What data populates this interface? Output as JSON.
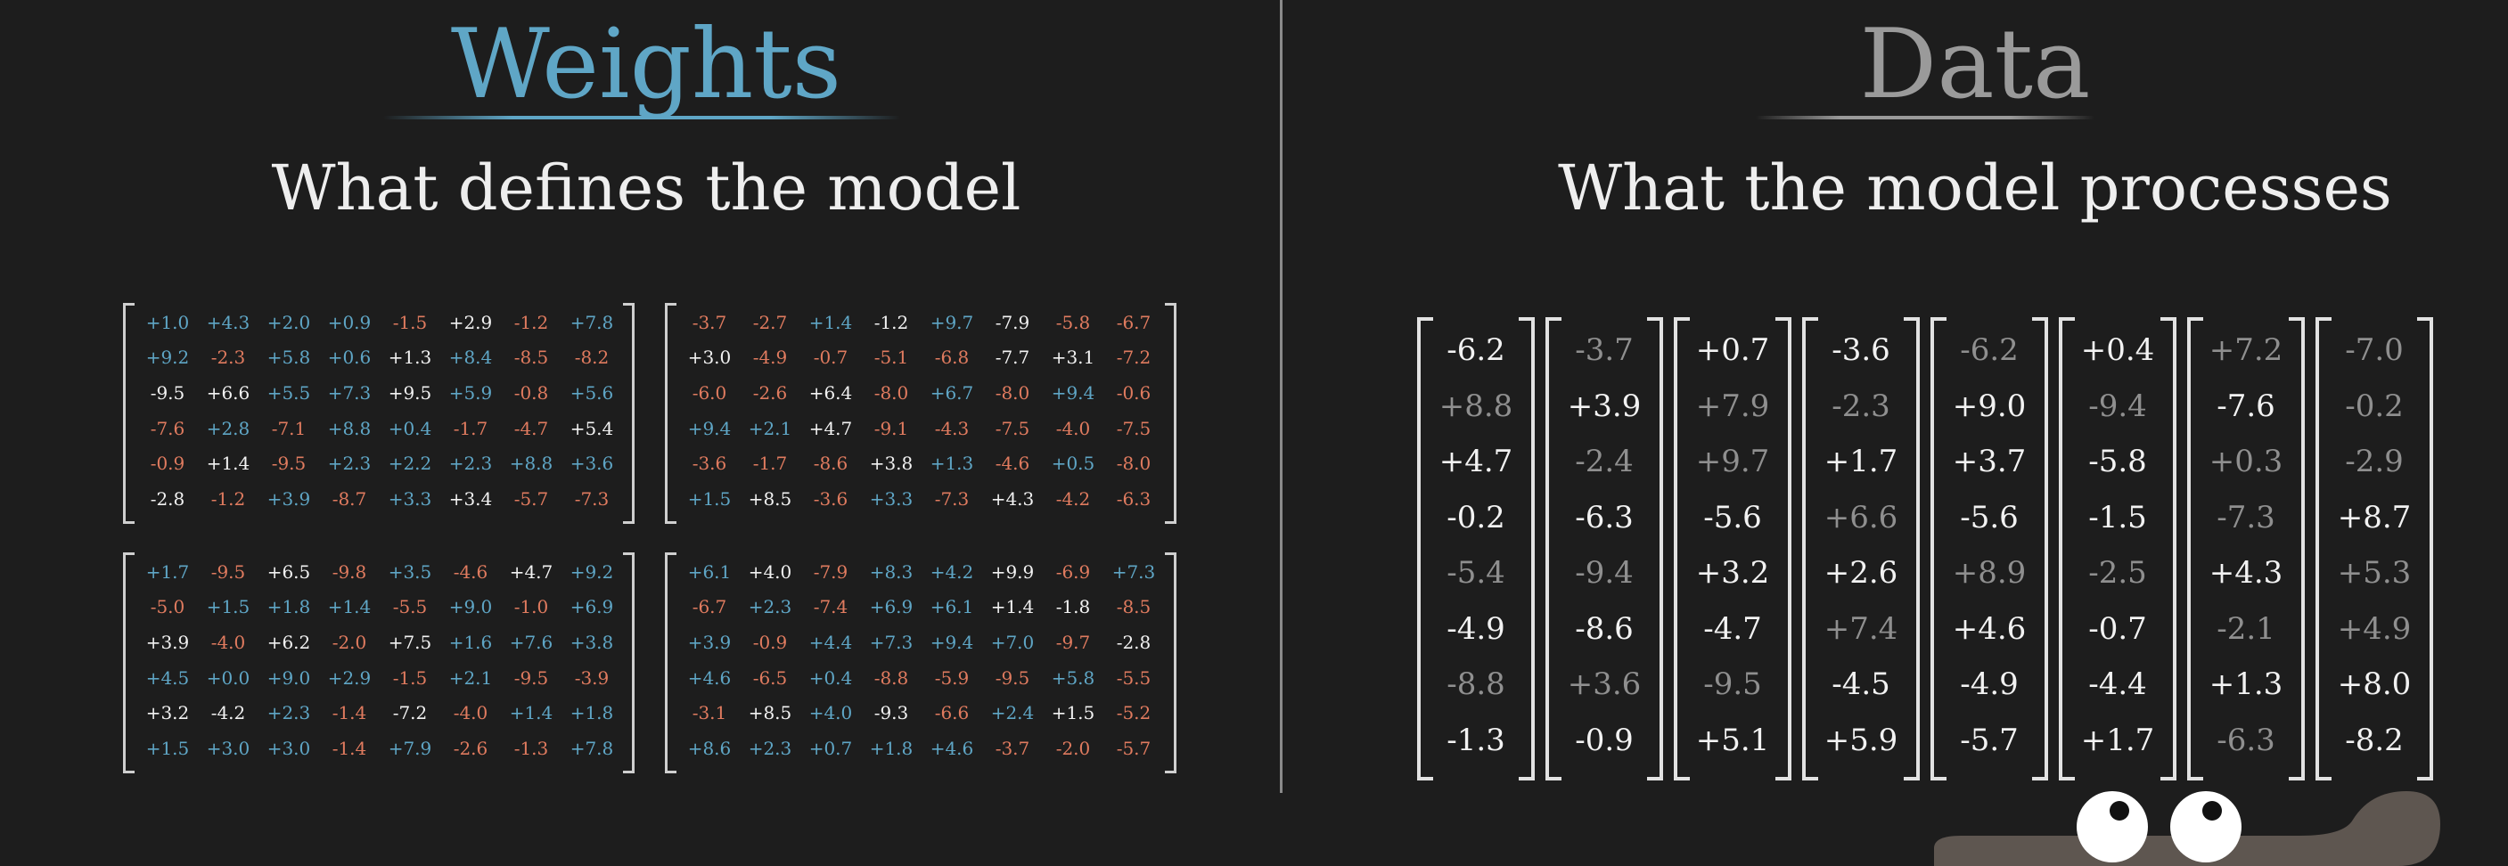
{
  "weights": {
    "title": "Weights",
    "subtitle": "What defines the model"
  },
  "data": {
    "title": "Data",
    "subtitle": "What the model processes"
  },
  "colors": {
    "positive": "#5fa6c6",
    "negative": "#e07b5f",
    "bright": "#f2f2f2",
    "gray": "#8f8f8f",
    "weights_title": "#5fa6c6",
    "data_title": "#9a9a9a",
    "creature": "#5e5650"
  },
  "weight_matrices": [
    {
      "rows": [
        [
          "+1.0",
          "+4.3",
          "+2.0",
          "+0.9",
          "-1.5",
          "+2.9",
          "-1.2",
          "+7.8"
        ],
        [
          "+9.2",
          "-2.3",
          "+5.8",
          "+0.6",
          "+1.3",
          "+8.4",
          "-8.5",
          "-8.2"
        ],
        [
          "-9.5",
          "+6.6",
          "+5.5",
          "+7.3",
          "+9.5",
          "+5.9",
          "-0.8",
          "+5.6"
        ],
        [
          "-7.6",
          "+2.8",
          "-7.1",
          "+8.8",
          "+0.4",
          "-1.7",
          "-4.7",
          "+5.4"
        ],
        [
          "-0.9",
          "+1.4",
          "-9.5",
          "+2.3",
          "+2.2",
          "+2.3",
          "+8.8",
          "+3.6"
        ],
        [
          "-2.8",
          "-1.2",
          "+3.9",
          "-8.7",
          "+3.3",
          "+3.4",
          "-5.7",
          "-7.3"
        ]
      ]
    },
    {
      "rows": [
        [
          "-3.7",
          "-2.7",
          "+1.4",
          "-1.2",
          "+9.7",
          "-7.9",
          "-5.8",
          "-6.7"
        ],
        [
          "+3.0",
          "-4.9",
          "-0.7",
          "-5.1",
          "-6.8",
          "-7.7",
          "+3.1",
          "-7.2"
        ],
        [
          "-6.0",
          "-2.6",
          "+6.4",
          "-8.0",
          "+6.7",
          "-8.0",
          "+9.4",
          "-0.6"
        ],
        [
          "+9.4",
          "+2.1",
          "+4.7",
          "-9.1",
          "-4.3",
          "-7.5",
          "-4.0",
          "-7.5"
        ],
        [
          "-3.6",
          "-1.7",
          "-8.6",
          "+3.8",
          "+1.3",
          "-4.6",
          "+0.5",
          "-8.0"
        ],
        [
          "+1.5",
          "+8.5",
          "-3.6",
          "+3.3",
          "-7.3",
          "+4.3",
          "-4.2",
          "-6.3"
        ]
      ]
    },
    {
      "rows": [
        [
          "+1.7",
          "-9.5",
          "+6.5",
          "-9.8",
          "+3.5",
          "-4.6",
          "+4.7",
          "+9.2"
        ],
        [
          "-5.0",
          "+1.5",
          "+1.8",
          "+1.4",
          "-5.5",
          "+9.0",
          "-1.0",
          "+6.9"
        ],
        [
          "+3.9",
          "-4.0",
          "+6.2",
          "-2.0",
          "+7.5",
          "+1.6",
          "+7.6",
          "+3.8"
        ],
        [
          "+4.5",
          "+0.0",
          "+9.0",
          "+2.9",
          "-1.5",
          "+2.1",
          "-9.5",
          "-3.9"
        ],
        [
          "+3.2",
          "-4.2",
          "+2.3",
          "-1.4",
          "-7.2",
          "-4.0",
          "+1.4",
          "+1.8"
        ],
        [
          "+1.5",
          "+3.0",
          "+3.0",
          "-1.4",
          "+7.9",
          "-2.6",
          "-1.3",
          "+7.8"
        ]
      ]
    },
    {
      "rows": [
        [
          "+6.1",
          "+4.0",
          "-7.9",
          "+8.3",
          "+4.2",
          "+9.9",
          "-6.9",
          "+7.3"
        ],
        [
          "-6.7",
          "+2.3",
          "-7.4",
          "+6.9",
          "+6.1",
          "+1.4",
          "-1.8",
          "-8.5"
        ],
        [
          "+3.9",
          "-0.9",
          "+4.4",
          "+7.3",
          "+9.4",
          "+7.0",
          "-9.7",
          "-2.8"
        ],
        [
          "+4.6",
          "-6.5",
          "+0.4",
          "-8.8",
          "-5.9",
          "-9.5",
          "+5.8",
          "-5.5"
        ],
        [
          "-3.1",
          "+8.5",
          "+4.0",
          "-9.3",
          "-6.6",
          "+2.4",
          "+1.5",
          "-5.2"
        ],
        [
          "+8.6",
          "+2.3",
          "+0.7",
          "+1.8",
          "+4.6",
          "-3.7",
          "-2.0",
          "-5.7"
        ]
      ]
    }
  ],
  "data_vectors": [
    [
      "-6.2",
      "+8.8",
      "+4.7",
      "-0.2",
      "-5.4",
      "-4.9",
      "-8.8",
      "-1.3"
    ],
    [
      "-3.7",
      "+3.9",
      "-2.4",
      "-6.3",
      "-9.4",
      "-8.6",
      "+3.6",
      "-0.9"
    ],
    [
      "+0.7",
      "+7.9",
      "+9.7",
      "-5.6",
      "+3.2",
      "-4.7",
      "-9.5",
      "+5.1"
    ],
    [
      "-3.6",
      "-2.3",
      "+1.7",
      "+6.6",
      "+2.6",
      "+7.4",
      "-4.5",
      "+5.9"
    ],
    [
      "-6.2",
      "+9.0",
      "+3.7",
      "-5.6",
      "+8.9",
      "+4.6",
      "-4.9",
      "-5.7"
    ],
    [
      "+0.4",
      "-9.4",
      "-5.8",
      "-1.5",
      "-2.5",
      "-0.7",
      "-4.4",
      "+1.7"
    ],
    [
      "+7.2",
      "-7.6",
      "+0.3",
      "-7.3",
      "+4.3",
      "-2.1",
      "+1.3",
      "-6.3"
    ],
    [
      "-7.0",
      "-0.2",
      "-2.9",
      "+8.7",
      "+5.3",
      "+4.9",
      "+8.0",
      "-8.2"
    ]
  ]
}
